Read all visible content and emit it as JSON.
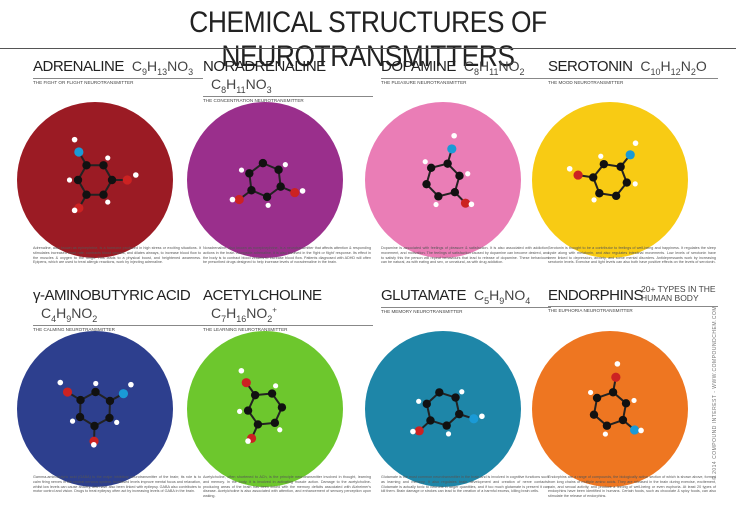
{
  "header": {
    "title": "CHEMICAL STRUCTURES OF NEUROTRANSMITTERS"
  },
  "panels": [
    {
      "name": "ADRENALINE",
      "formula": "C9H13NO3",
      "subtitle": "THE FIGHT OR FLIGHT NEUROTRANSMITTER",
      "description": "Adrenaline, also known as epinephrine, is a hormone produced in high stress or exciting situations. It stimulates increased heart rate, contracts blood vessels, and dilates airways, to increase blood flow to the muscles & oxygen to the lungs. This leads to a physical boost, and heightened awareness. Epipens, which are used to treat allergic reactions, work by injecting adrenaline."
    },
    {
      "name": "NORADRENALINE",
      "formula": "C8H11NO3",
      "subtitle": "THE CONCENTRATION NEUROTRANSMITTER",
      "description": "Noradrenaline, also known as norepinephrine, is a neurotransmitter that affects attention & responding actions in the brain. Alongside adrenaline, it is also involved in the 'fight or flight' response. Its effect in the body is to contract blood vessels to increase blood flow. Patients diagnosed with ADHD will often be prescribed drugs designed to help increase levels of noradrenaline in the brain."
    },
    {
      "name": "DOPAMINE",
      "formula": "C8H11NO2",
      "subtitle": "THE PLEASURE NEUROTRANSMITTER",
      "description": "Dopamine is associated with feelings of pleasure & satisfaction. It is also associated with addiction, movement, and motivation. The feelings of satisfaction caused by dopamine can become desired, and to satisfy this the person will repeat behaviours that lead to release of dopamine. These behaviours can be natural, as with eating and sex, or unnatural, as with drug addiction."
    },
    {
      "name": "SEROTONIN",
      "formula": "C10H12N2O",
      "subtitle": "THE MOOD NEUROTRANSMITTER",
      "description": "Serotonin is thought to be a contributor to feelings of well-being and happiness. It regulates the sleep cycle along with melatonin, and also regulates intestinal movements. Low levels of serotonin have been linked to depression, anxiety, and some mental disorders. Antidepressants work by increasing serotonin levels. Exercise and light levels can also both have positive effects on the levels of serotonin."
    },
    {
      "name": "γ-AMINOBUTYRIC ACID",
      "formula": "C4H9NO2",
      "subtitle": "THE CALMING NEUROTRANSMITTER",
      "description": "Gamma-aminobutyric acid (GABA) is the major inhibitory neurotransmitter of the brain; its role is to calm firing nerves in the central nervous system. Increased levels improve mental focus and relaxation, whilst low levels can cause anxiety, and have also been linked with epilepsy. GABA also contributes to motor control and vision. Drugs to treat epilepsy often act by increasing levels of GABA in the brain."
    },
    {
      "name": "ACETYLCHOLINE",
      "formula": "C7H16NO2+",
      "subtitle": "THE LEARNING NEUROTRANSMITTER",
      "description": "Acetylcholine, often shortened to ACh, is the principle neurotransmitter involved in thought, learning and memory. In the body, it is involved in activating muscle action. Damage to the acetylcholine-producing areas of the brain has been linked with the memory deficits associated with Alzheimer's disease. Acetylcholine is also associated with attention, and enhancement of sensory perception upon waking."
    },
    {
      "name": "GLUTAMATE",
      "formula": "C5H9NO4",
      "subtitle": "THE MEMORY NEUROTRANSMITTER",
      "description": "Glutamate is the most common neurotransmitter in the brain and is involved in cognitive functions such as learning and memory. It also regulates brain development and creation of nerve contacts. Glutamate is actually toxic to neurons in larger quantities, and if too much glutamate is present it can kill them. Brain damage or strokes can lead to the creation of a harmful excess, killing brain cells."
    },
    {
      "name": "ENDORPHINS",
      "formula": "",
      "subtitle": "THE EUPHORIA NEUROTRANSMITTER",
      "note": "20+ TYPES IN THE HUMAN BODY",
      "description": "Endorphins are a range of compounds, the biologically active section of which is shown above, formed from long chains of multiple amino acids. They are released in the brain during exercise, excitement, pain, and sexual activity, and produce a feeling of well-being or even euphoria. At least 20 types of endorphins have been identified in humans. Certain foods, such as chocolate & spicy foods, can also stimulate the release of endorphins."
    }
  ],
  "footer": {
    "credit": "© 2014 COMPOUND INTEREST - WWW.COMPOUNDCHEM.COM"
  }
}
